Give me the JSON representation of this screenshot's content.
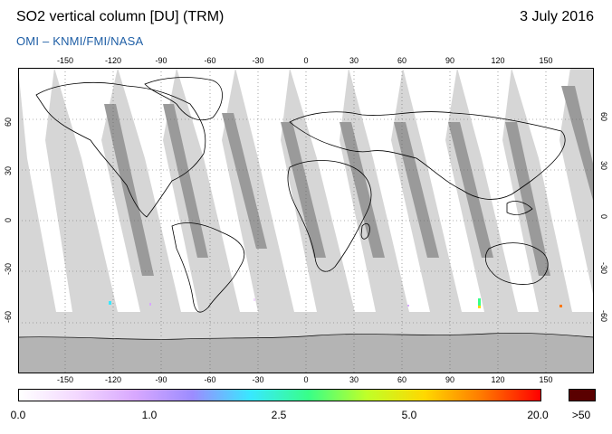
{
  "header": {
    "title": "SO2 vertical column [DU] (TRM)",
    "date": "3 July 2016",
    "source": "OMI  –  KNMI/FMI/NASA"
  },
  "map": {
    "projection": "equirectangular",
    "lon_range": [
      -180,
      180
    ],
    "lat_range": [
      -90,
      90
    ],
    "lon_ticks": [
      "-150",
      "-120",
      "-90",
      "-60",
      "-30",
      "0",
      "30",
      "60",
      "90",
      "120",
      "150"
    ],
    "lat_ticks": [
      "60",
      "30",
      "0",
      "-30",
      "-60"
    ],
    "grid": "dotted",
    "colors": {
      "land_background": "#c8c8c8",
      "ocean_no_data": "#d6d6d6",
      "swath_valid": "#ffffff",
      "swath_overlap": "#9a9a9a",
      "coastline": "#000000"
    }
  },
  "colorbar": {
    "labels": [
      "0.0",
      "1.0",
      "2.5",
      "5.0",
      "20.0"
    ],
    "overflow_label": ">50",
    "overflow_color": "#5a0000",
    "gradient_stops": [
      "#ffffff",
      "#f3d8ff",
      "#d8a8ff",
      "#9c8cff",
      "#38e8ff",
      "#38ff88",
      "#c0ff28",
      "#ffd800",
      "#ff7800",
      "#ff0000"
    ]
  }
}
